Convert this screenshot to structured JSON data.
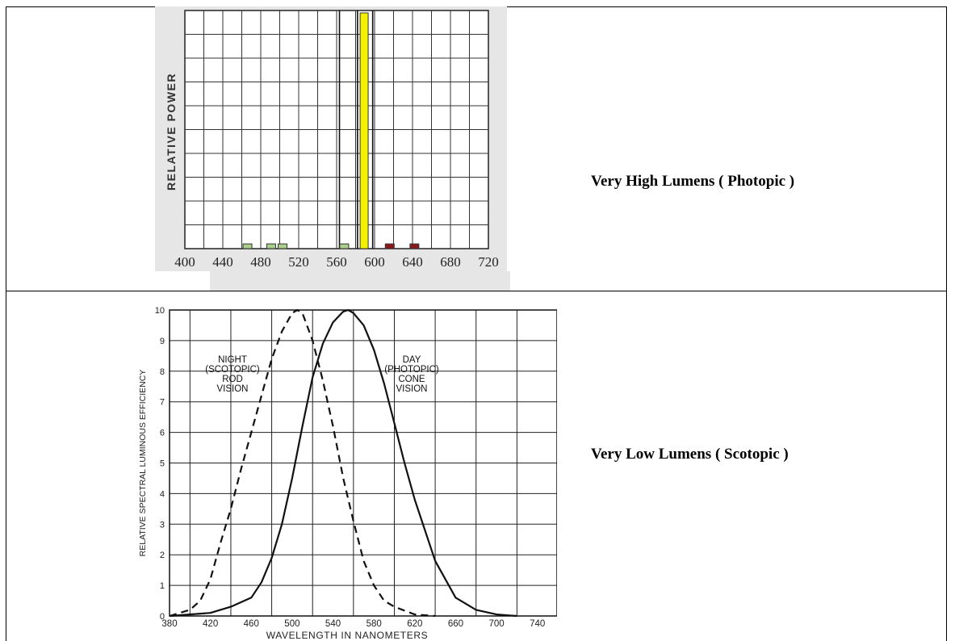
{
  "rows": [
    {
      "caption": "Very High Lumens ( Photopic )"
    },
    {
      "caption": "Very Low Lumens ( Scotopic )"
    }
  ],
  "colors": {
    "panel_bg": "#e6e6e6",
    "line_bar": "#f4f000",
    "mercury_green": "#a8d08a",
    "mercury_red": "#8a1a1a"
  },
  "chart_data": [
    {
      "type": "bar",
      "title": "",
      "xlabel": "",
      "ylabel": "RELATIVE POWER",
      "xlim": [
        400,
        720
      ],
      "ylim": [
        0,
        10
      ],
      "x_ticks": [
        "400",
        "440",
        "480",
        "520",
        "560",
        "600",
        "640",
        "680",
        "720"
      ],
      "grid": true,
      "series": [
        {
          "values": [
            {
              "x": 466,
              "y": 0.2
            },
            {
              "x": 491,
              "y": 0.2
            },
            {
              "x": 503,
              "y": 0.2
            },
            {
              "x": 568,
              "y": 0.2
            },
            {
              "x": 589,
              "y": 10
            },
            {
              "x": 616,
              "y": 0.2
            },
            {
              "x": 642,
              "y": 0.2
            }
          ]
        }
      ]
    },
    {
      "type": "line",
      "title": "",
      "xlabel": "WAVELENGTH IN NANOMETERS",
      "ylabel": "RELATIVE SPECTRAL LUMINOUS EFFICIENCY",
      "xlim": [
        380,
        760
      ],
      "ylim": [
        0,
        10
      ],
      "x_ticks": [
        "380",
        "420",
        "460",
        "500",
        "540",
        "580",
        "620",
        "660",
        "700",
        "740"
      ],
      "y_ticks": [
        "0",
        "1",
        "2",
        "3",
        "4",
        "5",
        "6",
        "7",
        "8",
        "9",
        "10"
      ],
      "grid": true,
      "series": [
        {
          "style": "dashed",
          "x": [
            380,
            400,
            410,
            420,
            430,
            440,
            450,
            460,
            470,
            480,
            490,
            500,
            505,
            510,
            520,
            530,
            540,
            550,
            560,
            570,
            580,
            590,
            600,
            620,
            640
          ],
          "y": [
            0,
            0.2,
            0.5,
            1.2,
            2.4,
            3.5,
            4.8,
            6.0,
            7.2,
            8.4,
            9.3,
            9.9,
            10,
            9.9,
            9.0,
            7.7,
            6.2,
            4.5,
            3.1,
            1.8,
            1.0,
            0.5,
            0.3,
            0.05,
            0
          ]
        },
        {
          "style": "solid",
          "x": [
            380,
            420,
            440,
            460,
            470,
            480,
            490,
            500,
            510,
            520,
            530,
            540,
            550,
            555,
            560,
            570,
            580,
            590,
            600,
            610,
            620,
            640,
            660,
            680,
            700,
            720
          ],
          "y": [
            0,
            0.1,
            0.3,
            0.6,
            1.1,
            1.9,
            3.0,
            4.5,
            6.2,
            7.8,
            8.9,
            9.6,
            9.95,
            10,
            9.9,
            9.5,
            8.7,
            7.6,
            6.3,
            5.0,
            3.8,
            1.8,
            0.6,
            0.2,
            0.05,
            0
          ]
        }
      ],
      "annotations": [
        {
          "lines": [
            "NIGHT",
            "(SCOTOPIC)",
            "ROD",
            "VISION"
          ]
        },
        {
          "lines": [
            "DAY",
            "(PHOTOPIC)",
            "CONE",
            "VISION"
          ]
        }
      ]
    }
  ]
}
